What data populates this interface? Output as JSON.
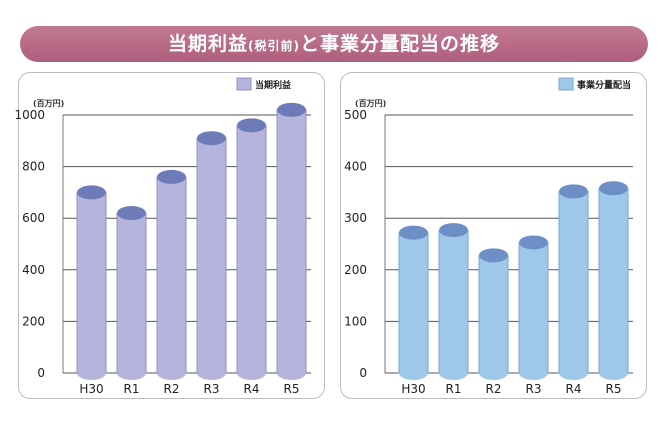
{
  "title": {
    "main_1": "当期利益",
    "small": "(税引前)",
    "main_2": "と事業分量配当の推移"
  },
  "chart_data": [
    {
      "type": "bar",
      "categories": [
        "H30",
        "R1",
        "R2",
        "R3",
        "R4",
        "R5"
      ],
      "series": [
        {
          "name": "当期利益",
          "values": [
            700,
            620,
            760,
            910,
            960,
            1020
          ]
        }
      ],
      "unit": "(百万円)",
      "ylim": [
        0,
        1000
      ],
      "yticks": [
        0,
        200,
        400,
        600,
        800,
        1000
      ],
      "grid": true,
      "legend": "top-right",
      "colors": {
        "body": "#b5b4dc",
        "top": "#6d7bb9",
        "edge": "#8f8fc2"
      }
    },
    {
      "type": "bar",
      "categories": [
        "H30",
        "R1",
        "R2",
        "R3",
        "R4",
        "R5"
      ],
      "series": [
        {
          "name": "事業分量配当",
          "values": [
            272,
            277,
            228,
            253,
            352,
            358
          ]
        }
      ],
      "unit": "(百万円)",
      "ylim": [
        0,
        500
      ],
      "yticks": [
        0,
        100,
        200,
        300,
        400,
        500
      ],
      "grid": true,
      "legend": "top-right",
      "colors": {
        "body": "#9ec8ea",
        "top": "#6d8fc6",
        "edge": "#7fa6d3"
      }
    }
  ]
}
